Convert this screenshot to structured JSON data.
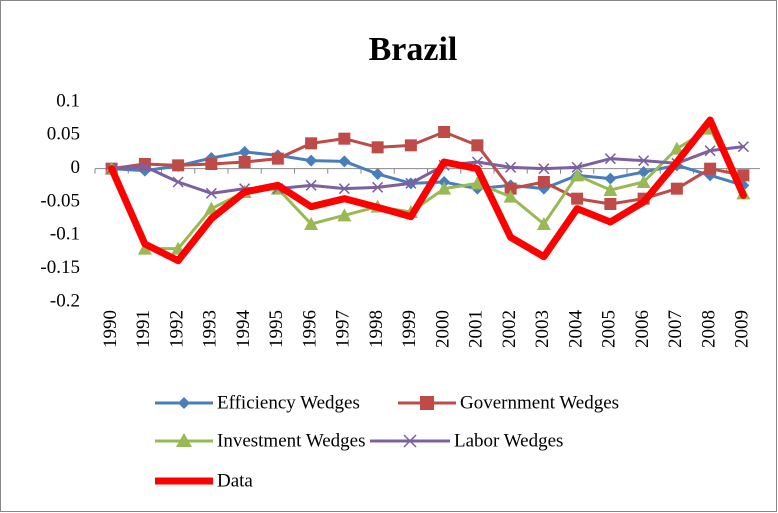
{
  "chart_data": {
    "type": "line",
    "title": "Brazil",
    "categories": [
      "1990",
      "1991",
      "1992",
      "1993",
      "1994",
      "1995",
      "1996",
      "1997",
      "1998",
      "1999",
      "2000",
      "2001",
      "2002",
      "2003",
      "2004",
      "2005",
      "2006",
      "2007",
      "2008",
      "2009"
    ],
    "ylim": [
      -0.2,
      0.1
    ],
    "yticks": [
      0.1,
      0.05,
      0,
      -0.05,
      -0.1,
      -0.15,
      -0.2
    ],
    "grid": false,
    "series": [
      {
        "name": "Efficiency Wedges",
        "color": "#4a7ebb",
        "marker": "diamond",
        "values": [
          0,
          -0.003,
          0.004,
          0.016,
          0.025,
          0.02,
          0.012,
          0.011,
          -0.008,
          -0.022,
          -0.02,
          -0.03,
          -0.025,
          -0.03,
          -0.01,
          -0.015,
          -0.005,
          0.005,
          -0.01,
          -0.025
        ]
      },
      {
        "name": "Government Wedges",
        "color": "#be4b48",
        "marker": "square",
        "values": [
          0,
          0.007,
          0.005,
          0.007,
          0.01,
          0.015,
          0.038,
          0.045,
          0.032,
          0.035,
          0.055,
          0.035,
          -0.03,
          -0.02,
          -0.045,
          -0.053,
          -0.045,
          -0.03,
          0,
          -0.01
        ]
      },
      {
        "name": "Investment Wedges",
        "color": "#98b954",
        "marker": "triangle",
        "values": [
          0,
          -0.12,
          -0.12,
          -0.06,
          -0.035,
          -0.03,
          -0.083,
          -0.07,
          -0.057,
          -0.065,
          -0.03,
          -0.022,
          -0.042,
          -0.083,
          -0.01,
          -0.032,
          -0.02,
          0.03,
          0.06,
          -0.037
        ]
      },
      {
        "name": "Labor Wedges",
        "color": "#7d60a0",
        "marker": "x",
        "values": [
          0,
          0.003,
          -0.02,
          -0.037,
          -0.03,
          -0.03,
          -0.025,
          -0.03,
          -0.028,
          -0.022,
          0.005,
          0.01,
          0.002,
          0,
          0.002,
          0.015,
          0.012,
          0.008,
          0.027,
          0.033
        ]
      },
      {
        "name": "Data",
        "color": "#ff0000",
        "marker": "none",
        "width": 7,
        "values": [
          0,
          -0.113,
          -0.138,
          -0.075,
          -0.035,
          -0.025,
          -0.057,
          -0.045,
          -0.058,
          -0.072,
          0.01,
          0,
          -0.103,
          -0.132,
          -0.06,
          -0.08,
          -0.05,
          0.01,
          0.073,
          -0.04
        ]
      }
    ]
  }
}
